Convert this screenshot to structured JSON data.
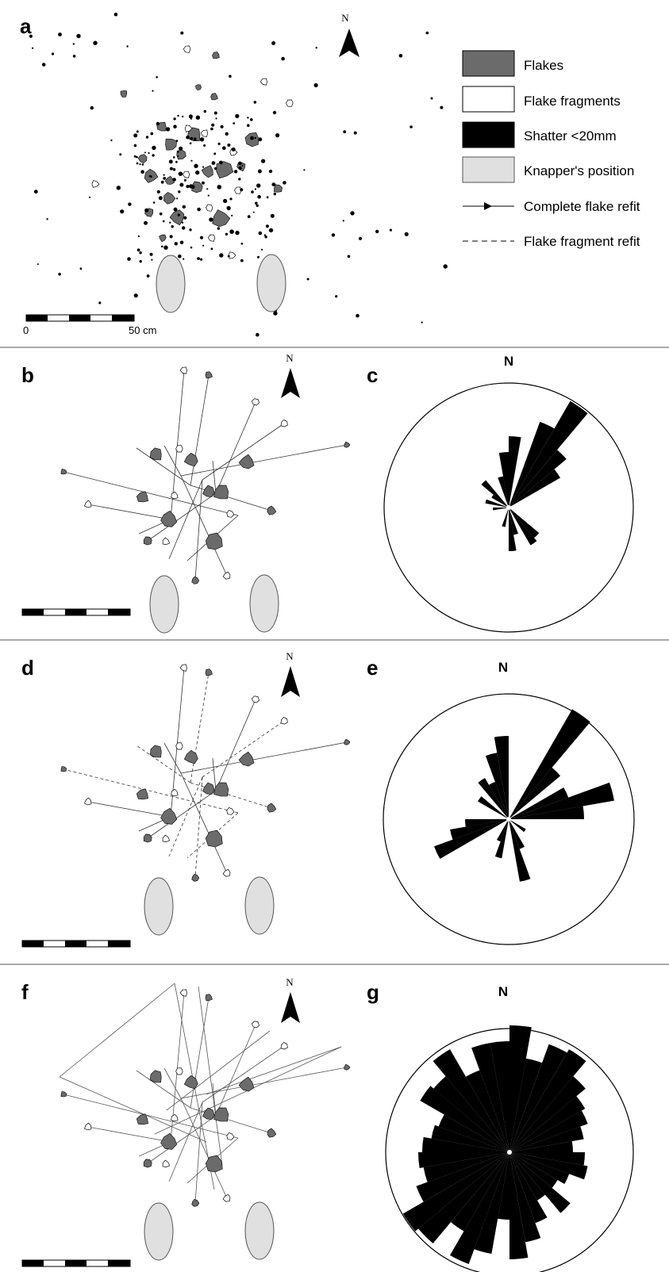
{
  "panels": {
    "a": "a",
    "b": "b",
    "c": "c",
    "d": "d",
    "e": "e",
    "f": "f",
    "g": "g"
  },
  "north_label": "N",
  "legend": [
    {
      "label": "Flakes",
      "symbol": "flake",
      "color": "#6b6b6b"
    },
    {
      "label": "Flake fragments",
      "symbol": "fragment",
      "color": "#ffffff"
    },
    {
      "label": "Shatter <20mm",
      "symbol": "shatter",
      "color": "#000000"
    },
    {
      "label": "Knapper's position",
      "symbol": "knapper",
      "color": "#e0e0e0"
    },
    {
      "label": "Complete flake refit",
      "symbol": "solid-arrow-line"
    },
    {
      "label": "Flake fragment refit",
      "symbol": "dashed-line"
    }
  ],
  "scale_bar": {
    "start_label": "0",
    "end_label": "50 cm"
  },
  "colors": {
    "flake": "#6b6b6b",
    "knapper": "#e0e0e0",
    "divider": "#555555"
  }
}
